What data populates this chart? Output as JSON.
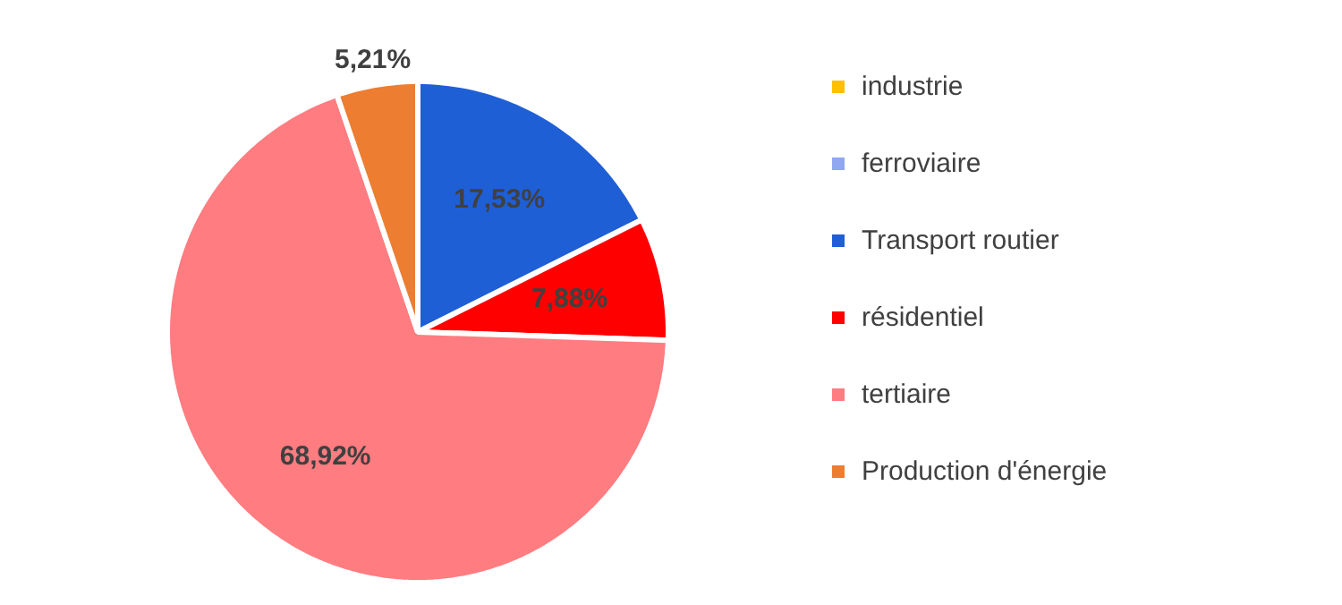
{
  "chart_data": {
    "type": "pie",
    "categories": [
      "industrie",
      "ferroviaire",
      "Transport routier",
      "résidentiel",
      "tertiaire",
      "Production d'énergie"
    ],
    "values": [
      0,
      0,
      17.53,
      7.88,
      68.92,
      5.21
    ],
    "value_labels": [
      null,
      null,
      "17,53%",
      "7,88%",
      "68,92%",
      "5,21%"
    ],
    "colors": [
      "#ffc000",
      "#8fa8f0",
      "#1f5fd6",
      "#ff0000",
      "#ff7c80",
      "#ed7d31"
    ],
    "legend": "right"
  }
}
